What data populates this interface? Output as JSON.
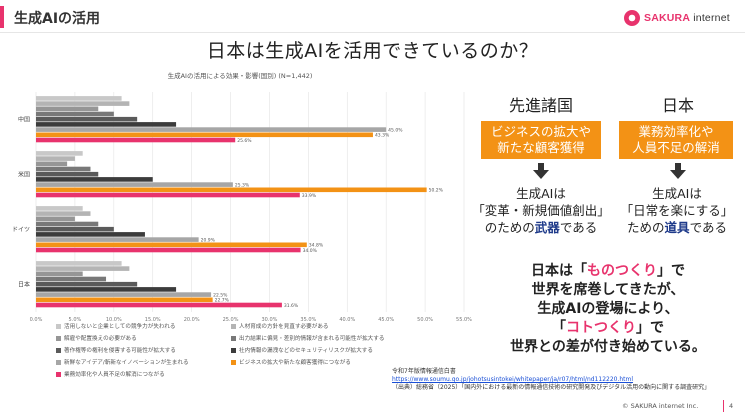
{
  "header": {
    "section_title": "生成AIの活用",
    "logo_text_brand": "SAKURA",
    "logo_text_rest": " internet"
  },
  "main_title": "日本は生成AIを活用できているのか？",
  "chart_data": {
    "type": "bar",
    "orientation": "horizontal",
    "title": "生成AIの活用による効果・影響(国別) (N=1,442)",
    "categories": [
      "中国",
      "米国",
      "ドイツ",
      "日本"
    ],
    "xlim": [
      0,
      55
    ],
    "xticks": [
      "0.0%",
      "5.0%",
      "10.0%",
      "15.0%",
      "20.0%",
      "25.0%",
      "30.0%",
      "35.0%",
      "40.0%",
      "45.0%",
      "50.0%",
      "55.0%"
    ],
    "series": [
      {
        "name": "活用しないと企業としての競争力が失われる",
        "color": "#c8c8c8",
        "values": [
          11,
          6,
          6,
          11
        ]
      },
      {
        "name": "人材育成の方針を見直す必要がある",
        "color": "#b4b4b4",
        "values": [
          12,
          5,
          7,
          12
        ]
      },
      {
        "name": "解雇や配置換えの必要がある",
        "color": "#969696",
        "values": [
          8,
          4,
          5,
          6
        ]
      },
      {
        "name": "出力結果に偏見・差別的情報が含まれる可能性が拡大する",
        "color": "#787878",
        "values": [
          10,
          7,
          8,
          9
        ]
      },
      {
        "name": "著作権等の権利を侵害する可能性が拡大する",
        "color": "#5a5a5a",
        "values": [
          13,
          8,
          10,
          13
        ]
      },
      {
        "name": "社内情報の漏洩などのセキュリティリスクが拡大する",
        "color": "#3c3c3c",
        "values": [
          18,
          15,
          14,
          18
        ]
      },
      {
        "name": "新鮮なアイデア/斬新なイノベーションが生まれる",
        "color": "#a6a6a6",
        "values": [
          45.0,
          25.3,
          20.9,
          22.5
        ]
      },
      {
        "name": "ビジネスの拡大や新たな顧客獲得につながる",
        "color": "#f39215",
        "values": [
          43.3,
          50.2,
          34.8,
          22.7
        ]
      },
      {
        "name": "業務効率化や人員不足の解消につながる",
        "color": "#e8336d",
        "values": [
          25.6,
          33.9,
          34.0,
          31.6
        ]
      }
    ],
    "data_labels": [
      [
        "",
        "",
        "",
        "",
        "",
        "",
        "45.0%",
        "43.3%",
        "25.6%"
      ],
      [
        "",
        "",
        "",
        "",
        "",
        "",
        "25.3%",
        "50.2%",
        "33.9%"
      ],
      [
        "",
        "",
        "",
        "",
        "",
        "",
        "20.9%",
        "34.8%",
        "34.0%"
      ],
      [
        "",
        "",
        "",
        "",
        "",
        "",
        "22.5%",
        "22.7%",
        "31.6%"
      ]
    ],
    "legend_placement": "bottom",
    "grid": "vertical-lines"
  },
  "right_panel": {
    "left_col": {
      "heading": "先進諸国",
      "box_line1": "ビジネスの拡大や",
      "box_line2": "新たな顧客獲得",
      "desc_line1": "生成AIは",
      "desc_line2": "「変革・新規価値創出」",
      "desc_line3_pre": "のための",
      "desc_line3_key": "武器",
      "desc_line3_post": "である"
    },
    "right_col": {
      "heading": "日本",
      "box_line1": "業務効率化や",
      "box_line2": "人員不足の解消",
      "desc_line1": "生成AIは",
      "desc_line2": "「日常を楽にする」",
      "desc_line3_pre": "ための",
      "desc_line3_key": "道具",
      "desc_line3_post": "である"
    },
    "conclusion": {
      "l1_pre": "日本は「",
      "l1_key": "ものつくり",
      "l1_post": "」で",
      "l2": "世界を席巻してきたが、",
      "l3": "生成AIの登場により、",
      "l4_pre": "「",
      "l4_key": "コトつくり",
      "l4_post": "」で",
      "l5": "世界との差が付き始めている。"
    }
  },
  "source": {
    "line1": "令和7年版情報通信白書",
    "line2": "https://www.soumu.go.jp/johotsusintokei/whitepaper/ja/r07/html/nd112220.html",
    "line3": "（出典）総務省（2025）「国内外における最新の情報通信技術の研究開発及びデジタル活用の動向に関する調査研究」"
  },
  "footer": {
    "copyright": "© SAKURA internet Inc.",
    "page": "4"
  }
}
